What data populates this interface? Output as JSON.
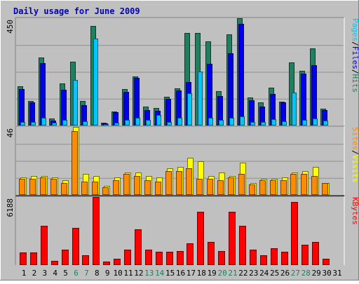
{
  "title": "Daily usage for June 2009",
  "colors": {
    "background": "#c0c0c0",
    "frame_dark": "#808080",
    "frame_light": "#ffffff",
    "title_text": "#0000c0",
    "hits": "#1f7f5f",
    "files": "#0000e8",
    "pages": "#00c8ff",
    "visits": "#ffff00",
    "sites": "#ff8c00",
    "kbytes": "#ff0000",
    "weekday_label": "#000000",
    "weekend_label": "#1f7f5f",
    "divider": "#000000"
  },
  "chart_data": {
    "type": "bar",
    "title": "Daily usage for June 2009",
    "categories": [
      "1",
      "2",
      "3",
      "4",
      "5",
      "6",
      "7",
      "8",
      "9",
      "10",
      "11",
      "12",
      "13",
      "14",
      "15",
      "16",
      "17",
      "18",
      "19",
      "20",
      "21",
      "22",
      "23",
      "24",
      "25",
      "26",
      "27",
      "28",
      "29",
      "30",
      "31"
    ],
    "weekend_days": [
      6,
      7,
      13,
      14,
      20,
      21,
      27,
      28
    ],
    "panels": [
      {
        "name": "requests",
        "ymax": 450,
        "ymax_label": "450",
        "grid": true,
        "legend": [
          {
            "text": "Pages",
            "color": "#00c8ff"
          },
          {
            "text": "/",
            "color": "#000000"
          },
          {
            "text": "Files",
            "color": "#0000e8"
          },
          {
            "text": "/",
            "color": "#000000"
          },
          {
            "text": "Hits",
            "color": "#1f7f5f"
          }
        ],
        "series": [
          {
            "name": "Hits",
            "color": "#1f7f5f",
            "values": [
              165,
              103,
              285,
              28,
              177,
              268,
              102,
              418,
              12,
              58,
              154,
              206,
              78,
              74,
              122,
              156,
              388,
              388,
              354,
              145,
              383,
              450,
              118,
              96,
              158,
              101,
              264,
              230,
              324,
              70,
              0
            ]
          },
          {
            "name": "Files",
            "color": "#0000e8",
            "values": [
              152,
              96,
              262,
              20,
              150,
              0,
              86,
              0,
              10,
              55,
              140,
              201,
              64,
              61,
              113,
              148,
              181,
              0,
              260,
              125,
              304,
              426,
              105,
              80,
              131,
              97,
              0,
              219,
              254,
              65,
              0
            ]
          },
          {
            "name": "Pages",
            "color": "#00c8ff",
            "values": [
              14,
              14,
              31,
              12,
              25,
              190,
              19,
              365,
              7,
              13,
              25,
              31,
              23,
              43,
              14,
              31,
              136,
              226,
              31,
              24,
              31,
              37,
              15,
              15,
              26,
              17,
              138,
              25,
              29,
              20,
              0
            ]
          }
        ]
      },
      {
        "name": "visits",
        "ymax": 46,
        "ymax_label": "46",
        "grid": true,
        "legend": [
          {
            "text": "Sites",
            "color": "#ff8c00"
          },
          {
            "text": "/",
            "color": "#000000"
          },
          {
            "text": "Visits",
            "color": "#ffff00"
          }
        ],
        "series": [
          {
            "name": "Visits",
            "color": "#ffff00",
            "values": [
              12,
              13,
              13,
              12,
              10,
              46,
              14,
              13,
              6,
              12,
              15,
              15,
              13,
              12,
              18,
              19,
              25,
              23,
              13,
              15,
              13,
              22,
              8,
              11,
              11,
              12,
              15,
              16,
              19,
              8,
              0
            ]
          },
          {
            "name": "Sites",
            "color": "#ff8c00",
            "values": [
              11,
              11,
              12,
              11,
              8,
              43,
              9,
              9,
              5,
              10,
              14,
              13,
              10,
              9,
              16,
              16,
              18,
              11,
              11,
              10,
              12,
              14,
              7,
              10,
              10,
              10,
              14,
              14,
              13,
              8,
              0
            ]
          }
        ]
      },
      {
        "name": "kbytes",
        "ymax": 6188,
        "ymax_label": "6188",
        "grid": false,
        "legend": [
          {
            "text": "KBytes",
            "color": "#ff0000"
          }
        ],
        "series": [
          {
            "name": "KBytes",
            "color": "#ff0000",
            "values": [
              1158,
              1158,
              3582,
              377,
              1379,
              3402,
              890,
              6188,
              340,
              587,
              1379,
              3239,
              1379,
              1232,
              1232,
              1305,
              1994,
              4840,
              2077,
              1305,
              4840,
              3582,
              1379,
              917,
              1554,
              1232,
              5760,
              1854,
              2077,
              587,
              0
            ]
          }
        ]
      }
    ]
  }
}
